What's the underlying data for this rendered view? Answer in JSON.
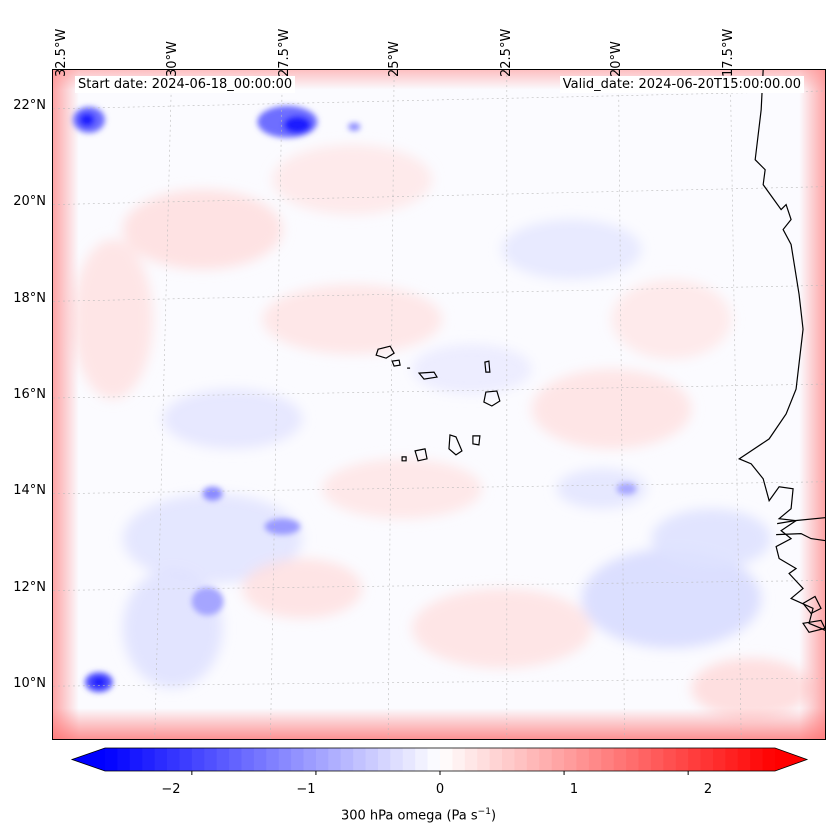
{
  "map": {
    "start_date": "Start date: 2024-06-18_00:00:00",
    "valid_date": "Valid_date: 2024-06-20T15:00:00.00",
    "lon_labels": [
      "32.5°W",
      "30°W",
      "27.5°W",
      "25°W",
      "22.5°W",
      "20°W",
      "17.5°W"
    ],
    "lat_labels": [
      "22°N",
      "20°N",
      "18°N",
      "16°N",
      "14°N",
      "12°N",
      "10°N"
    ],
    "colors": {
      "negative": "#0000ff",
      "neutral": "#ffffff",
      "positive": "#ff0000",
      "coast": "#000000"
    }
  },
  "colorbar": {
    "title": "300 hPa omega (Pa s",
    "title_exponent": "−1",
    "title_close": ")",
    "tick_labels": [
      "−2",
      "−1",
      "0",
      "1",
      "2"
    ],
    "range": [
      -2.7,
      2.7
    ]
  }
}
